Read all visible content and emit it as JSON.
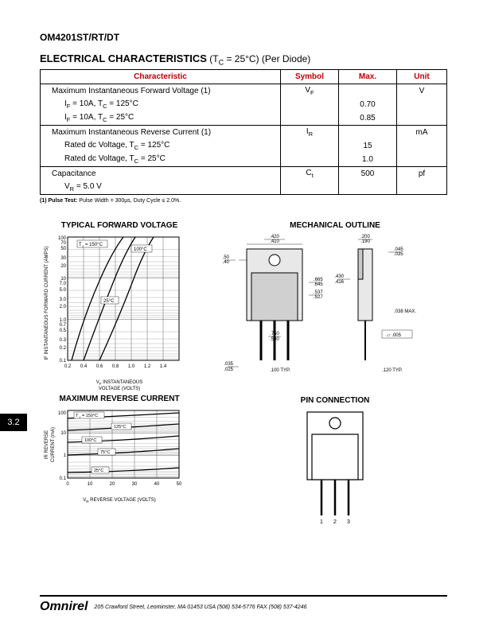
{
  "part_number": "OM4201ST/RT/DT",
  "section_header": {
    "title": "ELECTRICAL CHARACTERISTICS",
    "condition": " (T",
    "condition_sub": "C",
    "condition_rest": " = 25°C) (Per Diode)"
  },
  "table": {
    "headers": [
      "Characteristic",
      "Symbol",
      "Max.",
      "Unit"
    ],
    "groups": [
      {
        "title": "Maximum Instantaneous Forward Voltage (1)",
        "symbol_html": "V<sub>F</sub>",
        "unit": "V",
        "rows": [
          {
            "label_html": "I<sub>F</sub> = 10A, T<sub>C</sub> = 125°C",
            "max": "0.70"
          },
          {
            "label_html": "I<sub>F</sub> = 10A, T<sub>C</sub> = 25°C",
            "max": "0.85"
          }
        ]
      },
      {
        "title": "Maximum Instantaneous Reverse Current (1)",
        "symbol_html": "I<sub>R</sub>",
        "unit": "mA",
        "rows": [
          {
            "label_html": "Rated dc Voltage, T<sub>C</sub> = 125°C",
            "max": "15"
          },
          {
            "label_html": "Rated dc Voltage, T<sub>C</sub> = 25°C",
            "max": "1.0"
          }
        ]
      },
      {
        "title": "Capacitance",
        "symbol_html": "C<sub>t</sub>",
        "unit": "pf",
        "max": "500",
        "rows": [
          {
            "label_html": "V<sub>R</sub> = 5.0 V",
            "max": ""
          }
        ]
      }
    ]
  },
  "footnote": "(1)  Pulse Test:  Pulse Width = 300µs, Duty Cycle ≤ 2.0%.",
  "chart1": {
    "title": "TYPICAL FORWARD VOLTAGE",
    "ylabel": "IF INSTANTANEOUS FORWARD CURRENT (AMPS)",
    "xlabel": "VF INSTANTANEOUS VOLTAGE (VOLTS)",
    "yticks": [
      "0.1",
      "0.2",
      "0.3",
      "0.5",
      "0.7",
      "1.0",
      "2.0",
      "3.0",
      "5.0",
      "7.0",
      "10",
      "20",
      "30",
      "50",
      "70",
      "100"
    ],
    "xticks": [
      "0.2",
      "0.4",
      "0.6",
      "0.8",
      "1.0",
      "1.2",
      "1.4"
    ],
    "curve_labels": [
      "TJ = 150°C",
      "100°C",
      "25°C"
    ],
    "grid_color": "#000000",
    "bg_color": "#ffffff",
    "line_color": "#000000"
  },
  "chart2": {
    "title": "MAXIMUM REVERSE CURRENT",
    "ylabel": "IR REVERSE CURRENT (mA)",
    "xlabel": "VR REVERSE VOLTAGE (VOLTS)",
    "yticks": [
      "0.1",
      "1",
      "10",
      "100"
    ],
    "xticks": [
      "0",
      "10",
      "20",
      "30",
      "40",
      "50"
    ],
    "curve_labels": [
      "TJ = 150°C",
      "125°C",
      "100°C",
      "75°C",
      "25°C"
    ],
    "grid_color": "#000000",
    "bg_color": "#ffffff",
    "line_color": "#000000"
  },
  "mechanical": {
    "title": "MECHANICAL OUTLINE",
    "dims": {
      "width": ".420/.410",
      "tab_width": ".200/.190",
      "thickness": ".045/.035",
      "hole_offset": ".150/.140",
      "body_height": ".665/.645",
      "line1": ".537/.527",
      "tab_height": ".430/.416",
      "lead_length": ".750/.500",
      "lead_width": ".035/.025",
      "lead_pitch": ".100 TYP.",
      "side_note": ".038 MAX.",
      "flatness": "⏥ .005",
      "side_pitch": ".120 TYP."
    }
  },
  "pin_connection": {
    "title": "PIN CONNECTION",
    "pins": [
      "1",
      "2",
      "3"
    ]
  },
  "side_tab": "3.2",
  "footer": {
    "logo": "Omnirel",
    "address": "205 Crawford Street, Leominster, MA  01453  USA  (508) 534-5776 FAX (508) 537-4246"
  }
}
